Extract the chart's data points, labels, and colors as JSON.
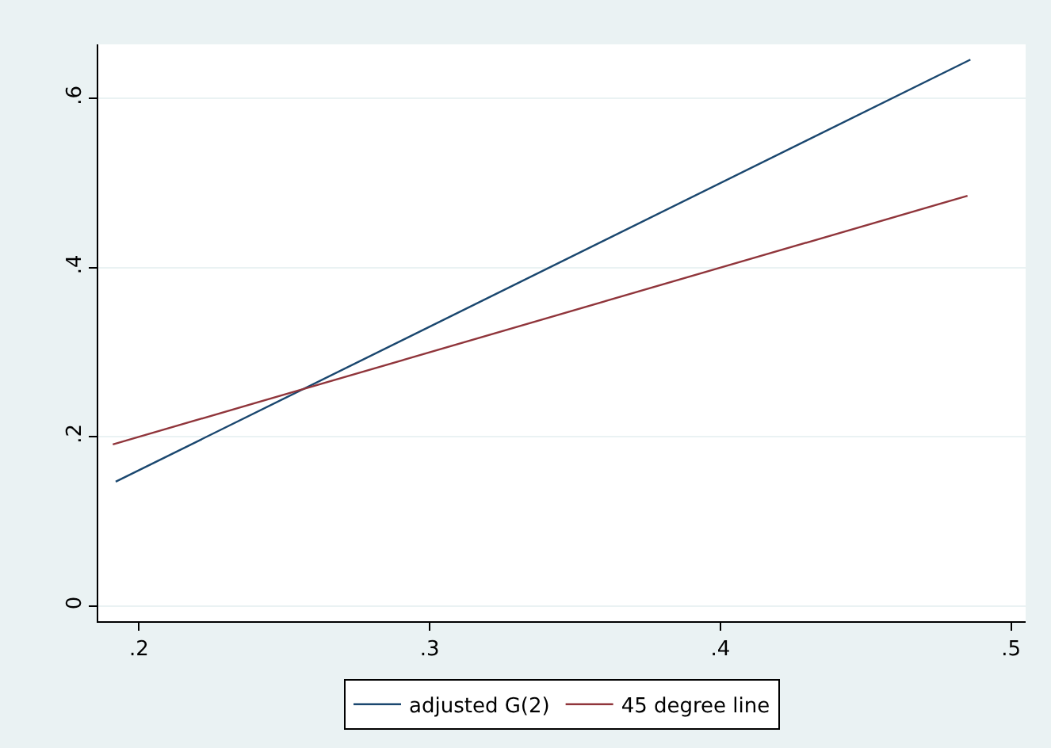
{
  "chart_data": {
    "type": "line",
    "series": [
      {
        "name": "adjusted G(2)",
        "color": "#1a476f",
        "x": [
          0.192,
          0.486
        ],
        "values": [
          0.147,
          0.646
        ]
      },
      {
        "name": "45 degree line",
        "color": "#90353b",
        "x": [
          0.191,
          0.485
        ],
        "values": [
          0.191,
          0.485
        ]
      }
    ],
    "xlim": [
      0.186,
      0.505
    ],
    "xticks": [
      {
        "value": 0.2,
        "label": ".2"
      },
      {
        "value": 0.3,
        "label": ".3"
      },
      {
        "value": 0.4,
        "label": ".4"
      },
      {
        "value": 0.5,
        "label": ".5"
      }
    ],
    "ylim": [
      -0.018,
      0.664
    ],
    "yticks": [
      0,
      {
        "value": 0.2,
        "label": ".2"
      },
      {
        "value": 0.4,
        "label": ".4"
      },
      {
        "value": 0.6,
        "label": ".6"
      }
    ],
    "grid": "y",
    "legend": "bottom",
    "marker": "none",
    "line_style": "solid"
  }
}
